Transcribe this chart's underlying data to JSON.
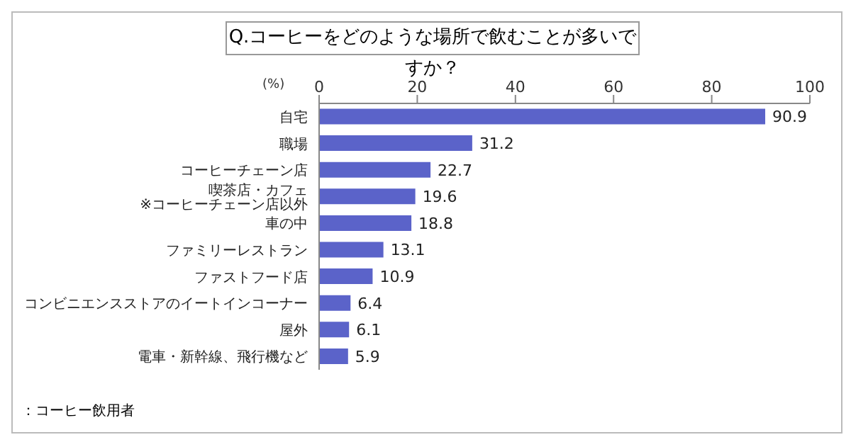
{
  "chart_data": {
    "type": "bar",
    "orientation": "horizontal",
    "title": "Q.コーヒーをどのような場所で飲むことが多いですか？",
    "xlabel": "(%)",
    "categories": [
      "自宅",
      "職場",
      "コーヒーチェーン店",
      "喫茶店・カフェ ※コーヒーチェーン店以外",
      "車の中",
      "ファミリーレストラン",
      "ファストフード店",
      "コンビニエンスストアのイートインコーナー",
      "屋外",
      "電車・新幹線、飛行機など"
    ],
    "values": [
      90.9,
      31.2,
      22.7,
      19.6,
      18.8,
      13.1,
      10.9,
      6.4,
      6.1,
      5.9
    ],
    "color": "#5b63c9",
    "xlim": [
      0,
      100
    ],
    "xticks": [
      0,
      20,
      40,
      60,
      80,
      100
    ],
    "data_labels": true,
    "grid": false,
    "annotations": [
      "：コーヒー飲用者"
    ]
  }
}
